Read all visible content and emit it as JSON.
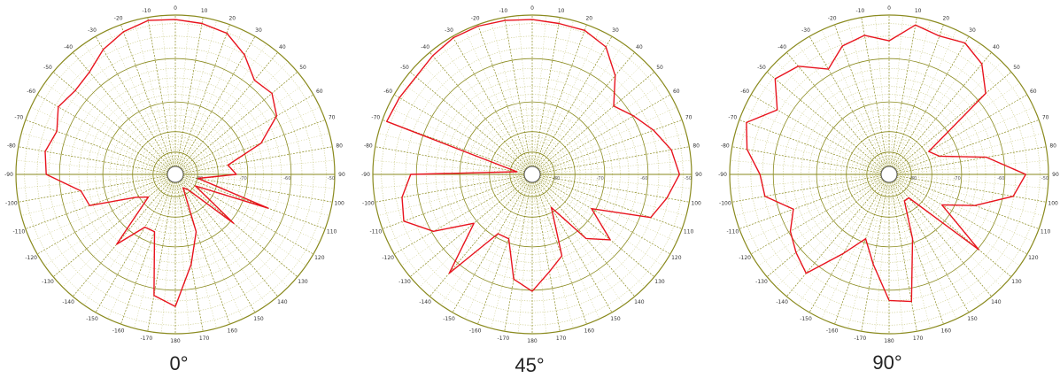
{
  "colors": {
    "grid": "#8a8a1e",
    "grid_minor": "#b8b85a",
    "trace": "#e8141e",
    "text": "#333333"
  },
  "chart_data": [
    {
      "type": "line",
      "polar": true,
      "title": "0°",
      "angle_ticks": [
        "0",
        "10",
        "20",
        "30",
        "40",
        "50",
        "60",
        "70",
        "80",
        "90",
        "100",
        "110",
        "120",
        "130",
        "140",
        "150",
        "160",
        "170",
        "180",
        "-170",
        "-160",
        "-150",
        "-140",
        "-130",
        "-120",
        "-110",
        "-100",
        "-90",
        "-80",
        "-70",
        "-60",
        "-50",
        "-40",
        "-30",
        "-20",
        "-10"
      ],
      "radial_labels": [
        "-80",
        "-70",
        "-60",
        "-50"
      ],
      "rlim": [
        0,
        1
      ],
      "series": [
        {
          "angles": [
            -180,
            -170,
            -160,
            -150,
            -140,
            -130,
            -120,
            -110,
            -100,
            -90,
            -80,
            -70,
            -60,
            -50,
            -40,
            -30,
            -20,
            -10,
            0,
            10,
            20,
            30,
            40,
            50,
            60,
            70,
            80,
            90,
            100,
            110,
            120,
            130,
            140,
            150,
            160,
            170
          ],
          "values": [
            0.82,
            0.76,
            0.35,
            0.35,
            0.55,
            0.18,
            0.25,
            0.55,
            0.58,
            0.8,
            0.82,
            0.78,
            0.84,
            0.81,
            0.83,
            0.9,
            0.95,
            0.98,
            0.97,
            0.96,
            0.94,
            0.86,
            0.76,
            0.78,
            0.72,
            0.55,
            0.3,
            0.35,
            0.1,
            0.6,
            0.1,
            0.45,
            0.08,
            0.05,
            0.35,
            0.55
          ]
        }
      ]
    },
    {
      "type": "line",
      "polar": true,
      "title": "45°",
      "angle_ticks": [
        "0",
        "10",
        "20",
        "30",
        "40",
        "50",
        "60",
        "70",
        "80",
        "90",
        "100",
        "110",
        "120",
        "130",
        "140",
        "150",
        "160",
        "170",
        "180",
        "-170",
        "-160",
        "-150",
        "-140",
        "-130",
        "-120",
        "-110",
        "-100",
        "-90",
        "-80",
        "-70",
        "-60",
        "-50",
        "-40",
        "-30",
        "-20",
        "-10"
      ],
      "radial_labels": [
        "-80",
        "-70",
        "-60",
        "-50"
      ],
      "rlim": [
        0,
        1
      ],
      "series": [
        {
          "angles": [
            -180,
            -170,
            -160,
            -150,
            -140,
            -130,
            -120,
            -110,
            -100,
            -90,
            -80,
            -70,
            -60,
            -50,
            -40,
            -30,
            -20,
            -10,
            0,
            10,
            20,
            30,
            40,
            50,
            60,
            70,
            80,
            90,
            100,
            110,
            120,
            130,
            140,
            150,
            160,
            170
          ],
          "values": [
            0.72,
            0.65,
            0.4,
            0.4,
            0.8,
            0.45,
            0.7,
            0.85,
            0.82,
            0.75,
            0.05,
            0.97,
            0.96,
            0.95,
            0.97,
            0.99,
            0.99,
            0.98,
            0.97,
            0.96,
            0.96,
            0.92,
            0.8,
            0.65,
            0.72,
            0.8,
            0.88,
            0.92,
            0.85,
            0.78,
            0.4,
            0.62,
            0.5,
            0.2,
            0.52,
            0.6
          ]
        }
      ]
    },
    {
      "type": "line",
      "polar": true,
      "title": "90°",
      "angle_ticks": [
        "0",
        "10",
        "20",
        "30",
        "40",
        "50",
        "60",
        "70",
        "80",
        "90",
        "100",
        "110",
        "120",
        "130",
        "140",
        "150",
        "160",
        "170",
        "180",
        "-170",
        "-160",
        "-150",
        "-140",
        "-130",
        "-120",
        "-110",
        "-100",
        "-90",
        "-80",
        "-70",
        "-60",
        "-50",
        "-40",
        "-30",
        "-20",
        "-10"
      ],
      "radial_labels": [
        "-80",
        "-70",
        "-60",
        "-50"
      ],
      "rlim": [
        0,
        1
      ],
      "series": [
        {
          "angles": [
            -180,
            -170,
            -160,
            -150,
            -140,
            -130,
            -120,
            -110,
            -100,
            -90,
            -80,
            -70,
            -60,
            -50,
            -40,
            -30,
            -20,
            -10,
            0,
            10,
            20,
            30,
            40,
            50,
            60,
            70,
            80,
            90,
            100,
            110,
            120,
            130,
            140,
            150,
            160,
            170
          ],
          "values": [
            0.78,
            0.55,
            0.4,
            0.55,
            0.8,
            0.75,
            0.7,
            0.62,
            0.78,
            0.8,
            0.9,
            0.95,
            0.8,
            0.93,
            0.88,
            0.75,
            0.85,
            0.88,
            0.83,
            0.95,
            0.92,
            0.95,
            0.9,
            0.78,
            0.25,
            0.3,
            0.6,
            0.85,
            0.78,
            0.55,
            0.35,
            0.72,
            0.15,
            0.15,
            0.4,
            0.8
          ]
        }
      ]
    }
  ]
}
